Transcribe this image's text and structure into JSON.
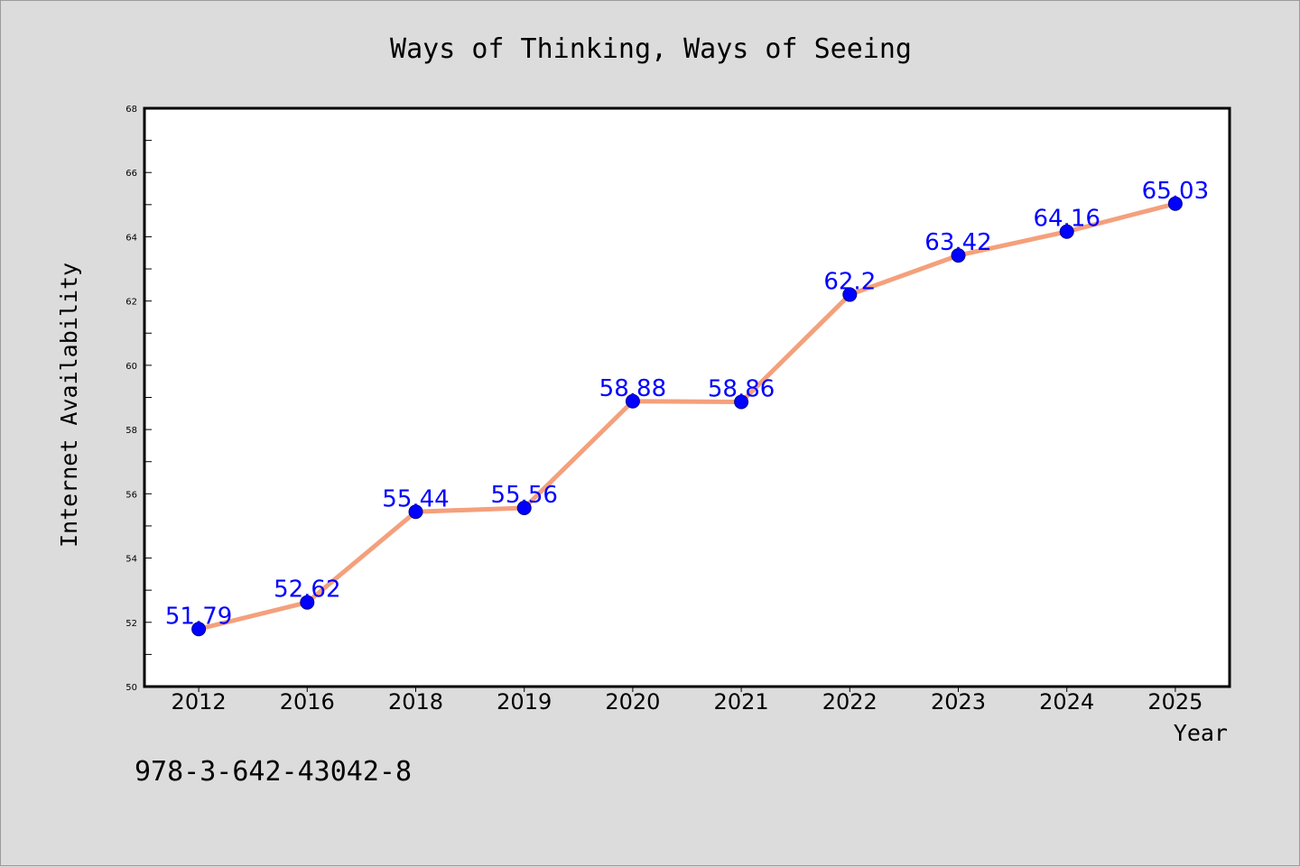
{
  "chart_data": {
    "type": "line",
    "title": "Ways of Thinking, Ways of Seeing",
    "xlabel": "Year",
    "ylabel": "Internet Availability",
    "categories": [
      "2012",
      "2016",
      "2018",
      "2019",
      "2020",
      "2021",
      "2022",
      "2023",
      "2024",
      "2025"
    ],
    "series": [
      {
        "values": [
          51.79,
          52.62,
          55.44,
          55.56,
          58.88,
          58.86,
          62.2,
          63.42,
          64.16,
          65.03
        ],
        "data_labels": [
          "51.79",
          "52.62",
          "55.44",
          "55.56",
          "58.88",
          "58.86",
          "62.2",
          "63.42",
          "64.16",
          "65.03"
        ]
      }
    ],
    "ylim": [
      50,
      68
    ],
    "yticks": [
      "50",
      "52",
      "54",
      "56",
      "58",
      "60",
      "62",
      "64",
      "66",
      "68"
    ],
    "grid": false,
    "legend": "none",
    "colors": {
      "line": "#f4a07c",
      "marker": "#0000ff",
      "data_label": "#0000ff",
      "plot_background": "#ffffff",
      "page_background": "#dcdcdc"
    }
  },
  "footnote": "978-3-642-43042-8"
}
